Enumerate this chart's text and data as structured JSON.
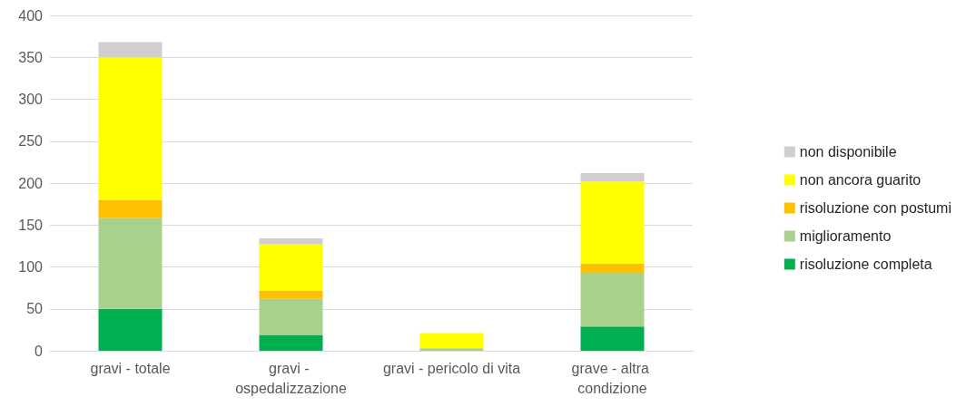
{
  "chart_data": {
    "type": "bar",
    "stacked": true,
    "categories": [
      "gravi - totale",
      "gravi - ospedalizzazione",
      "gravi - pericolo di vita",
      "grave - altra condizione"
    ],
    "series": [
      {
        "name": "risoluzione completa",
        "color": "#00b050",
        "values": [
          50,
          19,
          0,
          29
        ]
      },
      {
        "name": "miglioramento",
        "color": "#a9d18e",
        "values": [
          108,
          43,
          3,
          64
        ]
      },
      {
        "name": "risoluzione con postumi",
        "color": "#ffc000",
        "values": [
          22,
          10,
          0,
          11
        ]
      },
      {
        "name": "non ancora guarito",
        "color": "#ffff00",
        "values": [
          170,
          55,
          18,
          98
        ]
      },
      {
        "name": "non disponibile",
        "color": "#d0cece",
        "values": [
          18,
          7,
          0,
          10
        ]
      }
    ],
    "ylim": [
      0,
      400
    ],
    "yticks": [
      0,
      50,
      100,
      150,
      200,
      250,
      300,
      350,
      400
    ],
    "grid": "y",
    "legend": "right"
  }
}
